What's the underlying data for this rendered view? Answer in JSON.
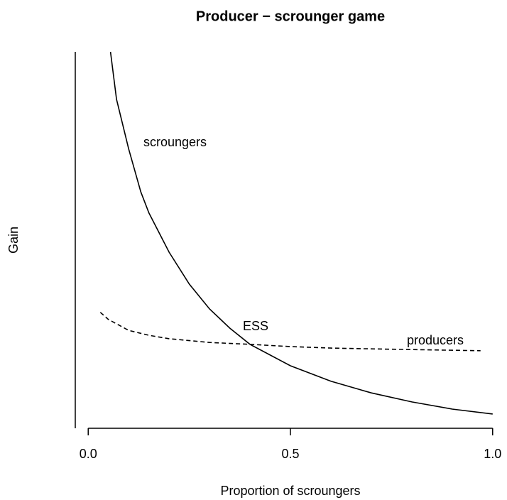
{
  "chart_data": {
    "type": "line",
    "title": "Producer − scrounger game",
    "x_label": "Proportion of scroungers",
    "y_label": "Gain",
    "xlim": [
      -0.032,
      1.032
    ],
    "ylim": [
      0,
      10
    ],
    "xticks": [
      {
        "value": 0,
        "label": "0.0"
      },
      0.5,
      {
        "value": 1,
        "label": "1.0"
      }
    ],
    "series": [
      {
        "name": "scroungers",
        "color": "#000000",
        "dash": false,
        "x": [
          0.055,
          0.07,
          0.1,
          0.13,
          0.15,
          0.2,
          0.25,
          0.3,
          0.35,
          0.4,
          0.5,
          0.6,
          0.7,
          0.8,
          0.9,
          1.0
        ],
        "values": [
          10,
          8.74,
          7.42,
          6.28,
          5.72,
          4.68,
          3.83,
          3.17,
          2.66,
          2.23,
          1.66,
          1.25,
          0.94,
          0.7,
          0.51,
          0.38
        ]
      },
      {
        "name": "producers",
        "color": "#000000",
        "dash": true,
        "x": [
          0.03,
          0.05,
          0.1,
          0.15,
          0.2,
          0.3,
          0.4,
          0.5,
          0.6,
          0.7,
          0.8,
          0.97
        ],
        "values": [
          3.08,
          2.89,
          2.6,
          2.47,
          2.38,
          2.28,
          2.23,
          2.17,
          2.13,
          2.11,
          2.09,
          2.06
        ]
      }
    ],
    "annotations": [
      "ESS"
    ]
  }
}
